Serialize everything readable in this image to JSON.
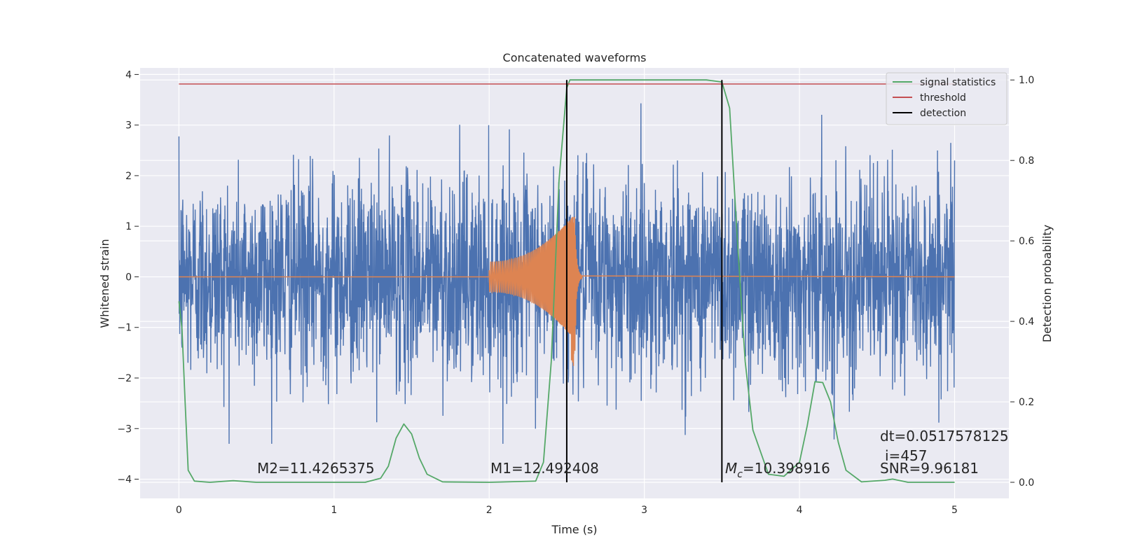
{
  "chart_data": {
    "type": "line",
    "title": "Concatenated waveforms",
    "xlabel": "Time (s)",
    "ylabel": "Whitened strain",
    "y2label": "Detection probability",
    "xlim": [
      -0.25,
      5.35
    ],
    "ylim": [
      -4.38,
      4.13
    ],
    "y2lim": [
      -0.04,
      1.03
    ],
    "xticks": [
      0,
      1,
      2,
      3,
      4,
      5
    ],
    "yticks": [
      -4,
      -3,
      -2,
      -1,
      0,
      1,
      2,
      3,
      4
    ],
    "y2ticks": [
      0.0,
      0.2,
      0.4,
      0.6,
      0.8,
      1.0
    ],
    "grid": true,
    "legend_position": "top-right",
    "legend": [
      {
        "label": "signal statistics",
        "color": "#55a868"
      },
      {
        "label": "threshold",
        "color": "#c44e52"
      },
      {
        "label": "detection",
        "color": "#000000"
      }
    ],
    "series": [
      {
        "name": "",
        "axis": "left",
        "kind": "noisy strain",
        "color": "#4c72b0",
        "x_range": [
          0,
          5
        ],
        "amplitude_range": [
          -3.3,
          3.8
        ]
      },
      {
        "name": "",
        "axis": "left",
        "kind": "chirp waveform",
        "color": "#dd8452",
        "x_range": [
          2.0,
          2.6
        ],
        "peak": 1.25,
        "trough": -1.8,
        "merger_x": 2.55
      },
      {
        "name": "signal statistics",
        "axis": "right",
        "color": "#55a868",
        "x": [
          0,
          0.02,
          0.04,
          0.06,
          0.1,
          0.2,
          0.35,
          0.5,
          0.8,
          1.0,
          1.2,
          1.3,
          1.35,
          1.4,
          1.45,
          1.5,
          1.55,
          1.6,
          1.7,
          2.0,
          2.3,
          2.35,
          2.4,
          2.45,
          2.5,
          2.52,
          2.6,
          3.0,
          3.4,
          3.5,
          3.55,
          3.6,
          3.65,
          3.7,
          3.8,
          3.9,
          4.0,
          4.05,
          4.1,
          4.15,
          4.2,
          4.25,
          4.3,
          4.4,
          4.55,
          4.6,
          4.7,
          5.0
        ],
        "y": [
          0.45,
          0.38,
          0.2,
          0.03,
          0.003,
          0.0,
          0.004,
          0.0,
          0.0,
          0.0,
          0.0,
          0.01,
          0.04,
          0.11,
          0.145,
          0.12,
          0.06,
          0.02,
          0.001,
          0.0,
          0.003,
          0.05,
          0.3,
          0.75,
          0.98,
          1.0,
          1.0,
          1.0,
          1.0,
          0.995,
          0.93,
          0.6,
          0.3,
          0.13,
          0.02,
          0.015,
          0.05,
          0.14,
          0.25,
          0.248,
          0.2,
          0.1,
          0.03,
          0.001,
          0.005,
          0.008,
          0.0,
          0.0
        ]
      },
      {
        "name": "threshold",
        "axis": "right",
        "color": "#c44e52",
        "x": [
          0,
          5
        ],
        "y": [
          0.99,
          0.99
        ]
      }
    ],
    "detections": [
      2.5,
      3.5
    ],
    "detection_range": [
      0.0,
      1.0
    ],
    "annotations": {
      "m2": "M2=11.4265375",
      "m1": "M1=12.492408",
      "mc": "M",
      "mc_sub": "c",
      "mc_value": "=10.398916",
      "dt": "dt=0.0517578125",
      "i": "i=457",
      "snr": "SNR=9.96181"
    }
  },
  "colors": {
    "plot_background": "#eaeaf2",
    "grid": "#ffffff",
    "noise": "#4c72b0",
    "chirp": "#dd8452",
    "statistics": "#55a868",
    "threshold": "#c44e52",
    "detection": "#000000"
  }
}
